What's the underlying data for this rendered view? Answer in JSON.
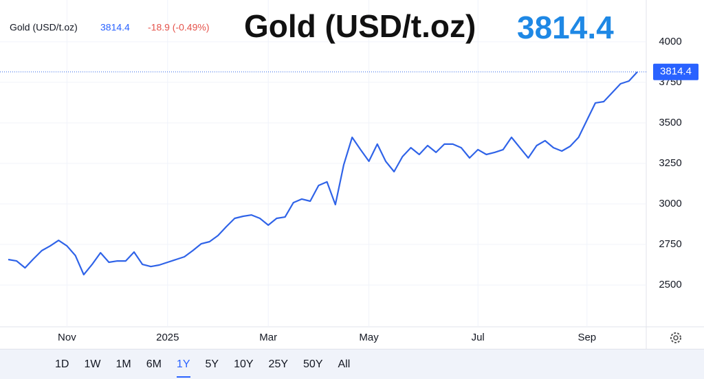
{
  "chart_data": {
    "type": "line",
    "title": "Gold (USD/t.oz)",
    "change": "-18.9 (-0.49%)",
    "categories": [
      null,
      null,
      null,
      null,
      null,
      null,
      null,
      "Nov",
      null,
      null,
      null,
      null,
      null,
      null,
      null,
      null,
      null,
      null,
      null,
      "2025",
      null,
      null,
      null,
      null,
      null,
      null,
      null,
      null,
      null,
      null,
      null,
      "Mar",
      null,
      null,
      null,
      null,
      null,
      null,
      null,
      null,
      null,
      null,
      null,
      "May",
      null,
      null,
      null,
      null,
      null,
      null,
      null,
      null,
      null,
      null,
      null,
      null,
      "Jul",
      null,
      null,
      null,
      null,
      null,
      null,
      null,
      null,
      null,
      null,
      null,
      null,
      "Sep",
      null,
      null,
      null,
      null,
      null,
      null
    ],
    "series": [
      {
        "name": "Gold (USD/t.oz)",
        "color": "#2f63e8",
        "values": [
          2657,
          2648,
          2606,
          2661,
          2712,
          2741,
          2775,
          2741,
          2682,
          2564,
          2627,
          2699,
          2640,
          2648,
          2648,
          2703,
          2627,
          2614,
          2623,
          2640,
          2657,
          2674,
          2712,
          2754,
          2767,
          2805,
          2860,
          2911,
          2924,
          2932,
          2911,
          2869,
          2911,
          2919,
          3008,
          3030,
          3017,
          3114,
          3136,
          2996,
          3242,
          3411,
          3335,
          3263,
          3369,
          3263,
          3199,
          3292,
          3347,
          3305,
          3360,
          3318,
          3369,
          3369,
          3347,
          3284,
          3335,
          3305,
          3318,
          3335,
          3411,
          3347,
          3284,
          3360,
          3390,
          3347,
          3326,
          3356,
          3411,
          3517,
          3623,
          3631,
          3686,
          3741,
          3758,
          3814.4
        ]
      }
    ],
    "ylim": [
      2242,
      4224
    ],
    "yticks": [
      2500,
      2750,
      3000,
      3250,
      3500,
      3750,
      4000
    ],
    "grid": true,
    "ranges": [
      "1D",
      "1W",
      "1M",
      "6M",
      "1Y",
      "5Y",
      "10Y",
      "25Y",
      "50Y",
      "All"
    ],
    "selected_range": "1Y"
  }
}
